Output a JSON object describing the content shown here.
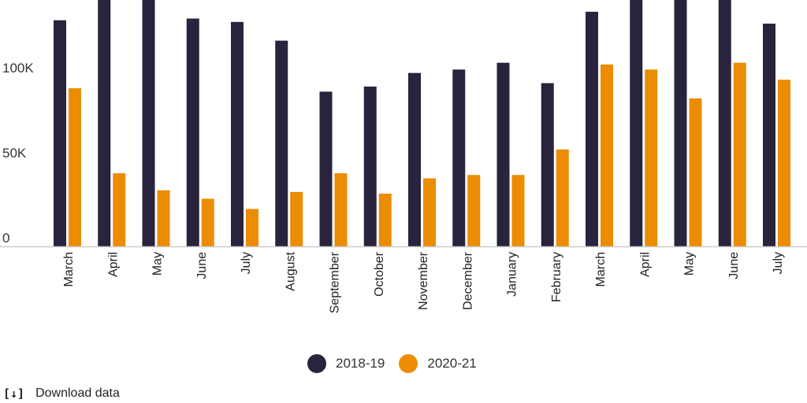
{
  "chart_data": {
    "type": "bar",
    "categories": [
      "March",
      "April",
      "May",
      "June",
      "July",
      "August",
      "September",
      "October",
      "November",
      "December",
      "January",
      "February",
      "March",
      "April",
      "May",
      "June",
      "July"
    ],
    "series": [
      {
        "name": "2018-19",
        "color": "#29233d",
        "values": [
          133000,
          150000,
          150000,
          134000,
          132000,
          121000,
          91000,
          94000,
          102000,
          104000,
          108000,
          96000,
          138000,
          150000,
          150000,
          150000,
          131000
        ]
      },
      {
        "name": "2020-21",
        "color": "#ec8c00",
        "values": [
          93000,
          43000,
          33000,
          28000,
          22000,
          32000,
          43000,
          31000,
          40000,
          42000,
          42000,
          57000,
          107000,
          104000,
          87000,
          108000,
          98000
        ]
      }
    ],
    "yticks": [
      {
        "value": 0,
        "label": "0"
      },
      {
        "value": 50000,
        "label": "50K"
      },
      {
        "value": 100000,
        "label": "100K"
      }
    ],
    "ylim": [
      0,
      145000
    ],
    "grid": false,
    "legend_position": "bottom"
  },
  "download": {
    "icon": "download-icon",
    "label": "Download data"
  }
}
